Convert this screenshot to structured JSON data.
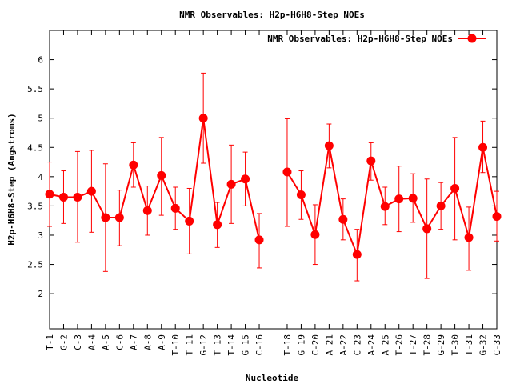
{
  "chart_data": {
    "type": "line",
    "title": "NMR Observables: H2p-H6H8-Step NOEs",
    "xlabel": "Nucleotide",
    "ylabel": "H2p-H6H8-Step (Angstroms)",
    "ylim": [
      1.4,
      6.5
    ],
    "yticks": [
      2,
      2.5,
      3,
      3.5,
      4,
      4.5,
      5,
      5.5,
      6
    ],
    "ytick_labels": [
      "2",
      "2.5",
      "3",
      "3.5",
      "4",
      "4.5",
      "5",
      "5.5",
      "6"
    ],
    "xlim": [
      0,
      32
    ],
    "grid": false,
    "legend_position": "top-right",
    "color": "#ff0000",
    "categories": [
      "T-1",
      "G-2",
      "C-3",
      "A-4",
      "A-5",
      "C-6",
      "A-7",
      "A-8",
      "A-9",
      "T-10",
      "T-11",
      "G-12",
      "T-13",
      "T-14",
      "G-15",
      "C-16",
      "T-18",
      "G-19",
      "C-20",
      "A-21",
      "A-22",
      "C-23",
      "A-24",
      "A-25",
      "T-26",
      "T-27",
      "T-28",
      "G-29",
      "T-30",
      "T-31",
      "G-32",
      "C-33"
    ],
    "series": [
      {
        "name": "NMR Observables: H2p-H6H8-Step NOEs",
        "x": [
          0,
          1,
          2,
          3,
          4,
          5,
          6,
          7,
          8,
          9,
          10,
          11,
          12,
          13,
          14,
          15,
          17,
          18,
          19,
          20,
          21,
          22,
          23,
          24,
          25,
          26,
          27,
          28,
          29,
          30,
          31,
          32
        ],
        "values": [
          3.7,
          3.65,
          3.65,
          3.75,
          3.3,
          3.3,
          4.2,
          3.42,
          4.02,
          3.46,
          3.24,
          5.0,
          3.18,
          3.87,
          3.96,
          2.92,
          4.08,
          3.69,
          3.01,
          4.53,
          3.27,
          2.67,
          4.27,
          3.49,
          3.62,
          3.63,
          3.11,
          3.5,
          3.8,
          2.96,
          4.5,
          3.32
        ],
        "err_low": [
          3.15,
          3.2,
          2.88,
          3.05,
          2.38,
          2.82,
          3.82,
          3.0,
          3.34,
          3.1,
          2.68,
          4.23,
          2.79,
          3.2,
          3.5,
          2.44,
          3.15,
          3.27,
          2.5,
          4.15,
          2.92,
          2.22,
          3.94,
          3.18,
          3.06,
          3.22,
          2.26,
          3.1,
          2.92,
          2.4,
          4.07,
          2.9
        ],
        "err_high": [
          4.25,
          4.1,
          4.43,
          4.45,
          4.22,
          3.77,
          4.58,
          3.84,
          4.67,
          3.82,
          3.8,
          5.77,
          3.56,
          4.54,
          4.42,
          3.37,
          4.99,
          4.1,
          3.52,
          4.9,
          3.62,
          3.1,
          4.58,
          3.82,
          4.18,
          4.05,
          3.96,
          3.9,
          4.67,
          3.48,
          4.95,
          3.75
        ]
      }
    ]
  }
}
